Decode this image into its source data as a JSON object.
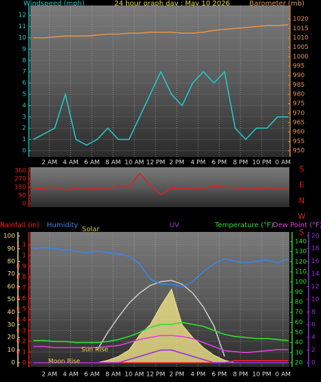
{
  "chart_data": [
    {
      "type": "line",
      "title": "24 hour graph day : May 10 2026",
      "ylabel": "Windspeed (mph)",
      "y2label": "Barometer (mb)",
      "x": [
        0.5,
        1.5,
        2.5,
        3.5,
        4.5,
        5.5,
        6.5,
        7.5,
        8.5,
        9.5,
        10.5,
        11.5,
        12.5,
        13.5,
        14.5,
        15.5,
        16.5,
        17.5,
        18.5,
        19.5,
        20.5,
        21.5,
        22.5,
        23.5,
        24.5
      ],
      "xlim": [
        0.2,
        24.6
      ],
      "xticks": [
        {
          "value": 2,
          "label": "2 AM"
        },
        {
          "value": 4,
          "label": "4 AM"
        },
        {
          "value": 6,
          "label": "6 AM"
        },
        {
          "value": 8,
          "label": "8 AM"
        },
        {
          "value": 10,
          "label": "10 AM"
        },
        {
          "value": 12,
          "label": "12 PM"
        },
        {
          "value": 14,
          "label": "2 PM"
        },
        {
          "value": 16,
          "label": "4 PM"
        },
        {
          "value": 18,
          "label": "6 PM"
        },
        {
          "value": 20,
          "label": "8 PM"
        },
        {
          "value": 22,
          "label": "10 PM"
        },
        {
          "value": 24,
          "label": "0 AM"
        }
      ],
      "ylim": [
        0,
        12.5
      ],
      "yticks": [
        0,
        1,
        2,
        3,
        4,
        5,
        6,
        7,
        8,
        9,
        10,
        11,
        12
      ],
      "y2lim": [
        950,
        1025
      ],
      "y2ticks": [
        950,
        955,
        960,
        965,
        970,
        975,
        980,
        985,
        990,
        995,
        1000,
        1005,
        1010,
        1015,
        1020
      ],
      "grid": true,
      "series": [
        {
          "name": "Windspeed",
          "color": "#22c8c8",
          "axis": "y",
          "values": [
            1,
            1.5,
            2,
            5,
            1,
            0.5,
            1,
            2,
            1,
            1,
            3,
            5,
            7,
            5,
            4,
            6,
            7,
            6,
            7,
            2,
            1,
            2,
            2,
            3,
            3
          ]
        },
        {
          "name": "Barometer",
          "color": "#e0944a",
          "axis": "y2",
          "values": [
            1010,
            1010,
            1010.5,
            1011,
            1011,
            1011,
            1011.5,
            1012,
            1012,
            1012.5,
            1012.5,
            1013,
            1013,
            1013,
            1012.5,
            1012.5,
            1013,
            1014,
            1014.5,
            1015,
            1015.5,
            1016,
            1016.5,
            1016.5,
            1017
          ]
        }
      ]
    },
    {
      "type": "line",
      "x": [
        0.5,
        1.5,
        2.5,
        3.5,
        4.5,
        5.5,
        6.5,
        7.5,
        8.5,
        9.5,
        10.5,
        11.5,
        12.5,
        13.5,
        14.5,
        15.5,
        16.5,
        17.5,
        18.5,
        19.5,
        20.5,
        21.5,
        22.5,
        23.5,
        24.5
      ],
      "xlim": [
        0.2,
        24.6
      ],
      "ylim": [
        0,
        360
      ],
      "yticks": [
        0,
        90,
        180,
        270,
        360
      ],
      "direction_labels": [
        "S",
        "E",
        "N",
        "W",
        "S"
      ],
      "series": [
        {
          "color": "#e02020",
          "axis": "y",
          "values": [
            160,
            170,
            180,
            150,
            170,
            170,
            165,
            160,
            200,
            180,
            330,
            200,
            100,
            170,
            160,
            170,
            170,
            190,
            180,
            175,
            160,
            165,
            170,
            170,
            175
          ]
        }
      ]
    },
    {
      "type": "line",
      "x": [
        0.5,
        1.5,
        2.5,
        3.5,
        4.5,
        5.5,
        6.5,
        7.5,
        8.5,
        9.5,
        10.5,
        11.5,
        12.5,
        13.5,
        14.5,
        15.5,
        16.5,
        17.5,
        18.5,
        19.5,
        20.5,
        21.5,
        22.5,
        23.5,
        24.5
      ],
      "xlim": [
        0.2,
        24.6
      ],
      "xticks": [
        {
          "value": 2,
          "label": "2 AM"
        },
        {
          "value": 4,
          "label": "4 AM"
        },
        {
          "value": 6,
          "label": "6 AM"
        },
        {
          "value": 8,
          "label": "8 AM"
        },
        {
          "value": 10,
          "label": "10 AM"
        },
        {
          "value": 12,
          "label": "12 PM"
        },
        {
          "value": 14,
          "label": "2 PM"
        },
        {
          "value": 16,
          "label": "4 PM"
        },
        {
          "value": 18,
          "label": "6 PM"
        },
        {
          "value": 20,
          "label": "8 PM"
        },
        {
          "value": 22,
          "label": "10 PM"
        },
        {
          "value": 24,
          "label": "0 AM"
        }
      ],
      "ylim": [
        0,
        1.2
      ],
      "yticks": [
        0,
        0.1,
        0.2,
        0.3,
        0.4,
        0.5,
        0.6,
        0.7,
        0.8,
        0.9,
        1,
        1.1
      ],
      "y2lim": [
        0,
        101.6
      ],
      "y2ticks": [
        0,
        10,
        20,
        30,
        40,
        50,
        60,
        70,
        80,
        90,
        100
      ],
      "y3lim": [
        20,
        147.5
      ],
      "y3ticks": [
        20,
        30,
        40,
        50,
        60,
        70,
        80,
        90,
        100,
        110,
        120,
        130,
        140
      ],
      "y4lim": [
        0,
        20.3
      ],
      "y4ticks": [
        0,
        2,
        4,
        6,
        8,
        10,
        12,
        14,
        16,
        18,
        20
      ],
      "grid": true,
      "annotations": [
        "Sun Rise",
        "Moon Rise"
      ],
      "series": [
        {
          "name": "Solar",
          "color": "#f0e48a",
          "axis": "y2",
          "kind": "area",
          "values": [
            0,
            0,
            0,
            0,
            0,
            0,
            0,
            2,
            5,
            10,
            22,
            30,
            45,
            58,
            30,
            20,
            12,
            6,
            2,
            0,
            0,
            0,
            0,
            0,
            0
          ]
        },
        {
          "color": "#c8c8c8",
          "axis": "y2",
          "values": [
            null,
            null,
            null,
            null,
            null,
            null,
            10,
            24,
            36,
            47,
            55,
            61,
            64,
            65,
            62,
            55,
            44,
            29,
            5,
            null,
            null,
            null,
            null,
            null,
            null
          ]
        },
        {
          "name": "Rainfall (in)",
          "color": "#ff2020",
          "axis": "y",
          "values": [
            0,
            0,
            0,
            0,
            0,
            0,
            0,
            0,
            0,
            0,
            0,
            0,
            0,
            0,
            0,
            0,
            0,
            0,
            0,
            0.02,
            0.02,
            0.02,
            0.02,
            0.02,
            0.02
          ]
        },
        {
          "name": "Humidity",
          "color": "#3a86e8",
          "axis": "y2",
          "values": [
            90,
            91,
            90,
            89,
            88,
            87,
            88,
            87,
            86,
            84,
            78,
            66,
            62,
            62,
            60,
            64,
            72,
            78,
            82,
            80,
            79,
            80,
            81,
            79,
            82
          ]
        },
        {
          "name": "UV",
          "color": "#9a30e0",
          "axis": "y4",
          "values": [
            0,
            0,
            0,
            0,
            0,
            0,
            0,
            0,
            0,
            0.5,
            1,
            1.5,
            2,
            2,
            1.5,
            1,
            0.5,
            0,
            0,
            0,
            0,
            0,
            0,
            0,
            0
          ]
        },
        {
          "name": "Temperature (°F)",
          "color": "#30e030",
          "axis": "y3",
          "values": [
            42,
            42,
            41,
            41,
            40,
            40,
            40,
            41,
            43,
            46,
            50,
            55,
            58,
            58,
            60,
            58,
            56,
            52,
            48,
            46,
            45,
            44,
            44,
            43,
            42
          ]
        },
        {
          "name": "Dew Point (°F)",
          "color": "#e040e0",
          "axis": "y3",
          "values": [
            36,
            36,
            35,
            35,
            35,
            35,
            35,
            36,
            37,
            40,
            43,
            45,
            47,
            47,
            46,
            44,
            40,
            36,
            32,
            31,
            30,
            31,
            32,
            33,
            33
          ]
        }
      ]
    }
  ]
}
